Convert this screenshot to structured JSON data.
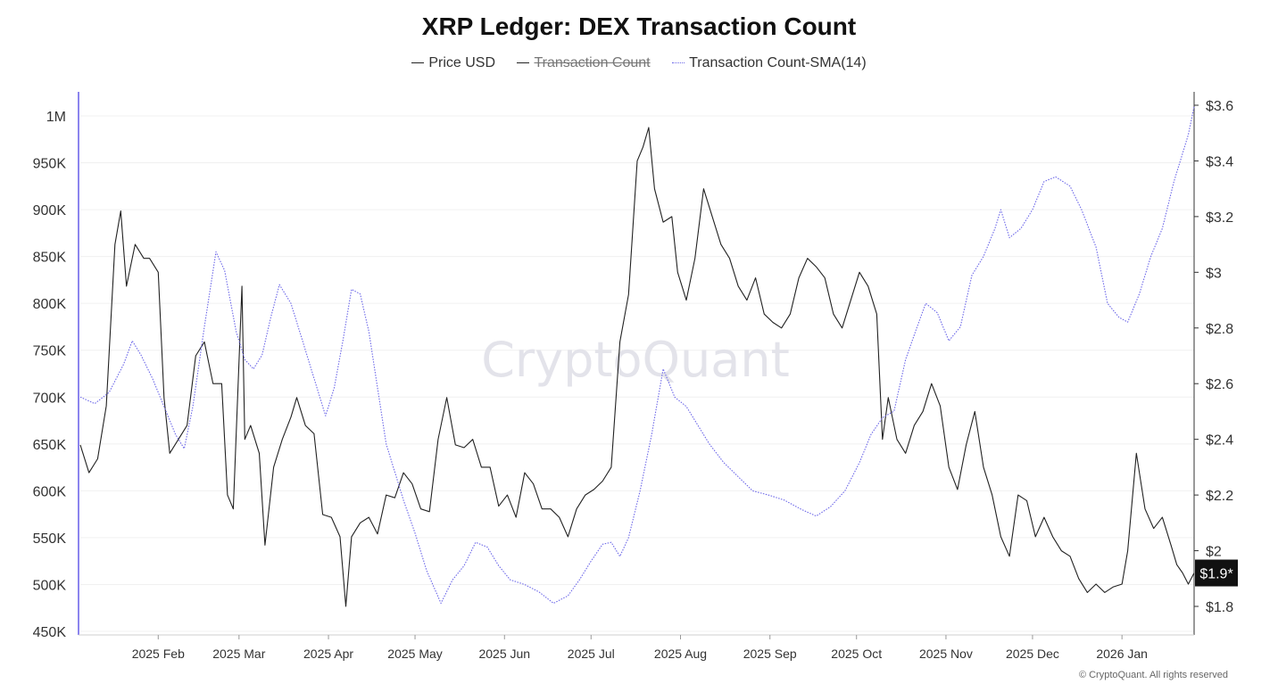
{
  "chart_data": {
    "type": "line",
    "title": "XRP Ledger: DEX Transaction Count",
    "legend": [
      {
        "name": "Price USD",
        "style": "solid",
        "color": "#222222",
        "hidden": false
      },
      {
        "name": "Transaction Count",
        "style": "solid",
        "color": "#222222",
        "hidden": true
      },
      {
        "name": "Transaction Count-SMA(14)",
        "style": "dotted",
        "color": "#6b66e8",
        "hidden": false
      }
    ],
    "x_ticks": [
      "2025 Feb",
      "2025 Mar",
      "2025 Apr",
      "2025 May",
      "2025 Jun",
      "2025 Jul",
      "2025 Aug",
      "2025 Sep",
      "2025 Oct",
      "2025 Nov",
      "2025 Dec",
      "2026 Jan"
    ],
    "x_range": [
      "2025-01-05",
      "2026-01-26"
    ],
    "y_left": {
      "ticks": [
        "450K",
        "500K",
        "550K",
        "600K",
        "650K",
        "700K",
        "750K",
        "800K",
        "850K",
        "900K",
        "950K",
        "1M"
      ],
      "range": [
        450000,
        1000000
      ]
    },
    "y_right": {
      "ticks": [
        "$1.8",
        "$2",
        "$2.2",
        "$2.4",
        "$2.6",
        "$2.8",
        "$3",
        "$3.2",
        "$3.4",
        "$3.6"
      ],
      "range": [
        1.8,
        3.6
      ]
    },
    "current_price_label": "$1.9*",
    "series": [
      {
        "name": "Price USD",
        "axis": "right",
        "color": "#222222",
        "points": [
          [
            "2025-01-05",
            2.38
          ],
          [
            "2025-01-08",
            2.28
          ],
          [
            "2025-01-11",
            2.33
          ],
          [
            "2025-01-14",
            2.52
          ],
          [
            "2025-01-17",
            3.1
          ],
          [
            "2025-01-19",
            3.22
          ],
          [
            "2025-01-21",
            2.95
          ],
          [
            "2025-01-24",
            3.1
          ],
          [
            "2025-01-27",
            3.05
          ],
          [
            "2025-01-29",
            3.05
          ],
          [
            "2025-02-01",
            3.0
          ],
          [
            "2025-02-03",
            2.55
          ],
          [
            "2025-02-05",
            2.35
          ],
          [
            "2025-02-08",
            2.4
          ],
          [
            "2025-02-11",
            2.45
          ],
          [
            "2025-02-14",
            2.7
          ],
          [
            "2025-02-17",
            2.75
          ],
          [
            "2025-02-20",
            2.6
          ],
          [
            "2025-02-23",
            2.6
          ],
          [
            "2025-02-25",
            2.2
          ],
          [
            "2025-02-27",
            2.15
          ],
          [
            "2025-03-02",
            2.95
          ],
          [
            "2025-03-03",
            2.4
          ],
          [
            "2025-03-05",
            2.45
          ],
          [
            "2025-03-08",
            2.35
          ],
          [
            "2025-03-10",
            2.02
          ],
          [
            "2025-03-13",
            2.3
          ],
          [
            "2025-03-16",
            2.4
          ],
          [
            "2025-03-19",
            2.48
          ],
          [
            "2025-03-21",
            2.55
          ],
          [
            "2025-03-24",
            2.45
          ],
          [
            "2025-03-27",
            2.42
          ],
          [
            "2025-03-30",
            2.13
          ],
          [
            "2025-04-02",
            2.12
          ],
          [
            "2025-04-05",
            2.05
          ],
          [
            "2025-04-07",
            1.8
          ],
          [
            "2025-04-09",
            2.05
          ],
          [
            "2025-04-12",
            2.1
          ],
          [
            "2025-04-15",
            2.12
          ],
          [
            "2025-04-18",
            2.06
          ],
          [
            "2025-04-21",
            2.2
          ],
          [
            "2025-04-24",
            2.19
          ],
          [
            "2025-04-27",
            2.28
          ],
          [
            "2025-04-30",
            2.24
          ],
          [
            "2025-05-03",
            2.15
          ],
          [
            "2025-05-06",
            2.14
          ],
          [
            "2025-05-09",
            2.4
          ],
          [
            "2025-05-12",
            2.55
          ],
          [
            "2025-05-15",
            2.38
          ],
          [
            "2025-05-18",
            2.37
          ],
          [
            "2025-05-21",
            2.4
          ],
          [
            "2025-05-24",
            2.3
          ],
          [
            "2025-05-27",
            2.3
          ],
          [
            "2025-05-30",
            2.16
          ],
          [
            "2025-06-02",
            2.2
          ],
          [
            "2025-06-05",
            2.12
          ],
          [
            "2025-06-08",
            2.28
          ],
          [
            "2025-06-11",
            2.24
          ],
          [
            "2025-06-14",
            2.15
          ],
          [
            "2025-06-17",
            2.15
          ],
          [
            "2025-06-20",
            2.12
          ],
          [
            "2025-06-23",
            2.05
          ],
          [
            "2025-06-26",
            2.15
          ],
          [
            "2025-06-29",
            2.2
          ],
          [
            "2025-07-02",
            2.22
          ],
          [
            "2025-07-05",
            2.25
          ],
          [
            "2025-07-08",
            2.3
          ],
          [
            "2025-07-11",
            2.75
          ],
          [
            "2025-07-14",
            2.92
          ],
          [
            "2025-07-17",
            3.4
          ],
          [
            "2025-07-19",
            3.45
          ],
          [
            "2025-07-21",
            3.52
          ],
          [
            "2025-07-23",
            3.3
          ],
          [
            "2025-07-26",
            3.18
          ],
          [
            "2025-07-29",
            3.2
          ],
          [
            "2025-07-31",
            3.0
          ],
          [
            "2025-08-03",
            2.9
          ],
          [
            "2025-08-06",
            3.05
          ],
          [
            "2025-08-09",
            3.3
          ],
          [
            "2025-08-12",
            3.2
          ],
          [
            "2025-08-15",
            3.1
          ],
          [
            "2025-08-18",
            3.05
          ],
          [
            "2025-08-21",
            2.95
          ],
          [
            "2025-08-24",
            2.9
          ],
          [
            "2025-08-27",
            2.98
          ],
          [
            "2025-08-30",
            2.85
          ],
          [
            "2025-09-02",
            2.82
          ],
          [
            "2025-09-05",
            2.8
          ],
          [
            "2025-09-08",
            2.85
          ],
          [
            "2025-09-11",
            2.98
          ],
          [
            "2025-09-14",
            3.05
          ],
          [
            "2025-09-17",
            3.02
          ],
          [
            "2025-09-20",
            2.98
          ],
          [
            "2025-09-23",
            2.85
          ],
          [
            "2025-09-26",
            2.8
          ],
          [
            "2025-09-29",
            2.9
          ],
          [
            "2025-10-02",
            3.0
          ],
          [
            "2025-10-05",
            2.95
          ],
          [
            "2025-10-08",
            2.85
          ],
          [
            "2025-10-10",
            2.4
          ],
          [
            "2025-10-12",
            2.55
          ],
          [
            "2025-10-15",
            2.4
          ],
          [
            "2025-10-18",
            2.35
          ],
          [
            "2025-10-21",
            2.45
          ],
          [
            "2025-10-24",
            2.5
          ],
          [
            "2025-10-27",
            2.6
          ],
          [
            "2025-10-30",
            2.52
          ],
          [
            "2025-11-02",
            2.3
          ],
          [
            "2025-11-05",
            2.22
          ],
          [
            "2025-11-08",
            2.38
          ],
          [
            "2025-11-11",
            2.5
          ],
          [
            "2025-11-14",
            2.3
          ],
          [
            "2025-11-17",
            2.2
          ],
          [
            "2025-11-20",
            2.05
          ],
          [
            "2025-11-23",
            1.98
          ],
          [
            "2025-11-26",
            2.2
          ],
          [
            "2025-11-29",
            2.18
          ],
          [
            "2025-12-02",
            2.05
          ],
          [
            "2025-12-05",
            2.12
          ],
          [
            "2025-12-08",
            2.05
          ],
          [
            "2025-12-11",
            2.0
          ],
          [
            "2025-12-14",
            1.98
          ],
          [
            "2025-12-17",
            1.9
          ],
          [
            "2025-12-20",
            1.85
          ],
          [
            "2025-12-23",
            1.88
          ],
          [
            "2025-12-26",
            1.85
          ],
          [
            "2025-12-29",
            1.87
          ],
          [
            "2026-01-01",
            1.88
          ],
          [
            "2026-01-03",
            2.0
          ],
          [
            "2026-01-06",
            2.35
          ],
          [
            "2026-01-09",
            2.15
          ],
          [
            "2026-01-12",
            2.08
          ],
          [
            "2026-01-15",
            2.12
          ],
          [
            "2026-01-18",
            2.02
          ],
          [
            "2026-01-20",
            1.95
          ],
          [
            "2026-01-22",
            1.92
          ],
          [
            "2026-01-24",
            1.88
          ],
          [
            "2026-01-26",
            1.92
          ]
        ]
      },
      {
        "name": "Transaction Count-SMA(14)",
        "axis": "left",
        "color": "#6b66e8",
        "points": [
          [
            "2025-01-05",
            700000
          ],
          [
            "2025-01-10",
            693000
          ],
          [
            "2025-01-15",
            705000
          ],
          [
            "2025-01-20",
            735000
          ],
          [
            "2025-01-23",
            760000
          ],
          [
            "2025-01-26",
            745000
          ],
          [
            "2025-01-30",
            720000
          ],
          [
            "2025-02-03",
            690000
          ],
          [
            "2025-02-07",
            660000
          ],
          [
            "2025-02-10",
            645000
          ],
          [
            "2025-02-13",
            690000
          ],
          [
            "2025-02-17",
            775000
          ],
          [
            "2025-02-21",
            855000
          ],
          [
            "2025-02-24",
            835000
          ],
          [
            "2025-02-28",
            770000
          ],
          [
            "2025-03-03",
            740000
          ],
          [
            "2025-03-06",
            730000
          ],
          [
            "2025-03-09",
            745000
          ],
          [
            "2025-03-12",
            785000
          ],
          [
            "2025-03-15",
            820000
          ],
          [
            "2025-03-19",
            800000
          ],
          [
            "2025-03-23",
            760000
          ],
          [
            "2025-03-27",
            720000
          ],
          [
            "2025-03-31",
            680000
          ],
          [
            "2025-04-03",
            710000
          ],
          [
            "2025-04-06",
            760000
          ],
          [
            "2025-04-09",
            815000
          ],
          [
            "2025-04-12",
            810000
          ],
          [
            "2025-04-15",
            770000
          ],
          [
            "2025-04-18",
            710000
          ],
          [
            "2025-04-21",
            650000
          ],
          [
            "2025-04-24",
            620000
          ],
          [
            "2025-04-27",
            590000
          ],
          [
            "2025-05-01",
            555000
          ],
          [
            "2025-05-05",
            515000
          ],
          [
            "2025-05-10",
            480000
          ],
          [
            "2025-05-14",
            505000
          ],
          [
            "2025-05-18",
            520000
          ],
          [
            "2025-05-22",
            545000
          ],
          [
            "2025-05-26",
            540000
          ],
          [
            "2025-05-30",
            520000
          ],
          [
            "2025-06-03",
            505000
          ],
          [
            "2025-06-08",
            500000
          ],
          [
            "2025-06-13",
            492000
          ],
          [
            "2025-06-18",
            480000
          ],
          [
            "2025-06-23",
            488000
          ],
          [
            "2025-06-27",
            505000
          ],
          [
            "2025-07-01",
            525000
          ],
          [
            "2025-07-05",
            543000
          ],
          [
            "2025-07-08",
            545000
          ],
          [
            "2025-07-11",
            530000
          ],
          [
            "2025-07-14",
            550000
          ],
          [
            "2025-07-18",
            600000
          ],
          [
            "2025-07-22",
            660000
          ],
          [
            "2025-07-26",
            730000
          ],
          [
            "2025-07-30",
            700000
          ],
          [
            "2025-08-03",
            690000
          ],
          [
            "2025-08-07",
            670000
          ],
          [
            "2025-08-11",
            650000
          ],
          [
            "2025-08-16",
            630000
          ],
          [
            "2025-08-21",
            615000
          ],
          [
            "2025-08-26",
            600000
          ],
          [
            "2025-09-01",
            595000
          ],
          [
            "2025-09-06",
            590000
          ],
          [
            "2025-09-12",
            580000
          ],
          [
            "2025-09-17",
            573000
          ],
          [
            "2025-09-22",
            583000
          ],
          [
            "2025-09-27",
            600000
          ],
          [
            "2025-10-02",
            630000
          ],
          [
            "2025-10-06",
            660000
          ],
          [
            "2025-10-10",
            678000
          ],
          [
            "2025-10-14",
            685000
          ],
          [
            "2025-10-18",
            740000
          ],
          [
            "2025-10-22",
            775000
          ],
          [
            "2025-10-25",
            800000
          ],
          [
            "2025-10-29",
            790000
          ],
          [
            "2025-11-02",
            760000
          ],
          [
            "2025-11-06",
            775000
          ],
          [
            "2025-11-10",
            830000
          ],
          [
            "2025-11-14",
            850000
          ],
          [
            "2025-11-18",
            880000
          ],
          [
            "2025-11-20",
            900000
          ],
          [
            "2025-11-23",
            870000
          ],
          [
            "2025-11-27",
            880000
          ],
          [
            "2025-12-01",
            900000
          ],
          [
            "2025-12-05",
            930000
          ],
          [
            "2025-12-09",
            935000
          ],
          [
            "2025-12-14",
            925000
          ],
          [
            "2025-12-18",
            900000
          ],
          [
            "2025-12-23",
            860000
          ],
          [
            "2025-12-27",
            800000
          ],
          [
            "2025-12-31",
            785000
          ],
          [
            "2026-01-03",
            780000
          ],
          [
            "2026-01-07",
            810000
          ],
          [
            "2026-01-11",
            850000
          ],
          [
            "2026-01-15",
            880000
          ],
          [
            "2026-01-19",
            930000
          ],
          [
            "2026-01-22",
            960000
          ],
          [
            "2026-01-24",
            980000
          ],
          [
            "2026-01-26",
            1010000
          ]
        ]
      }
    ],
    "watermark": "CryptoQuant",
    "footer": "© CryptoQuant. All rights reserved"
  }
}
